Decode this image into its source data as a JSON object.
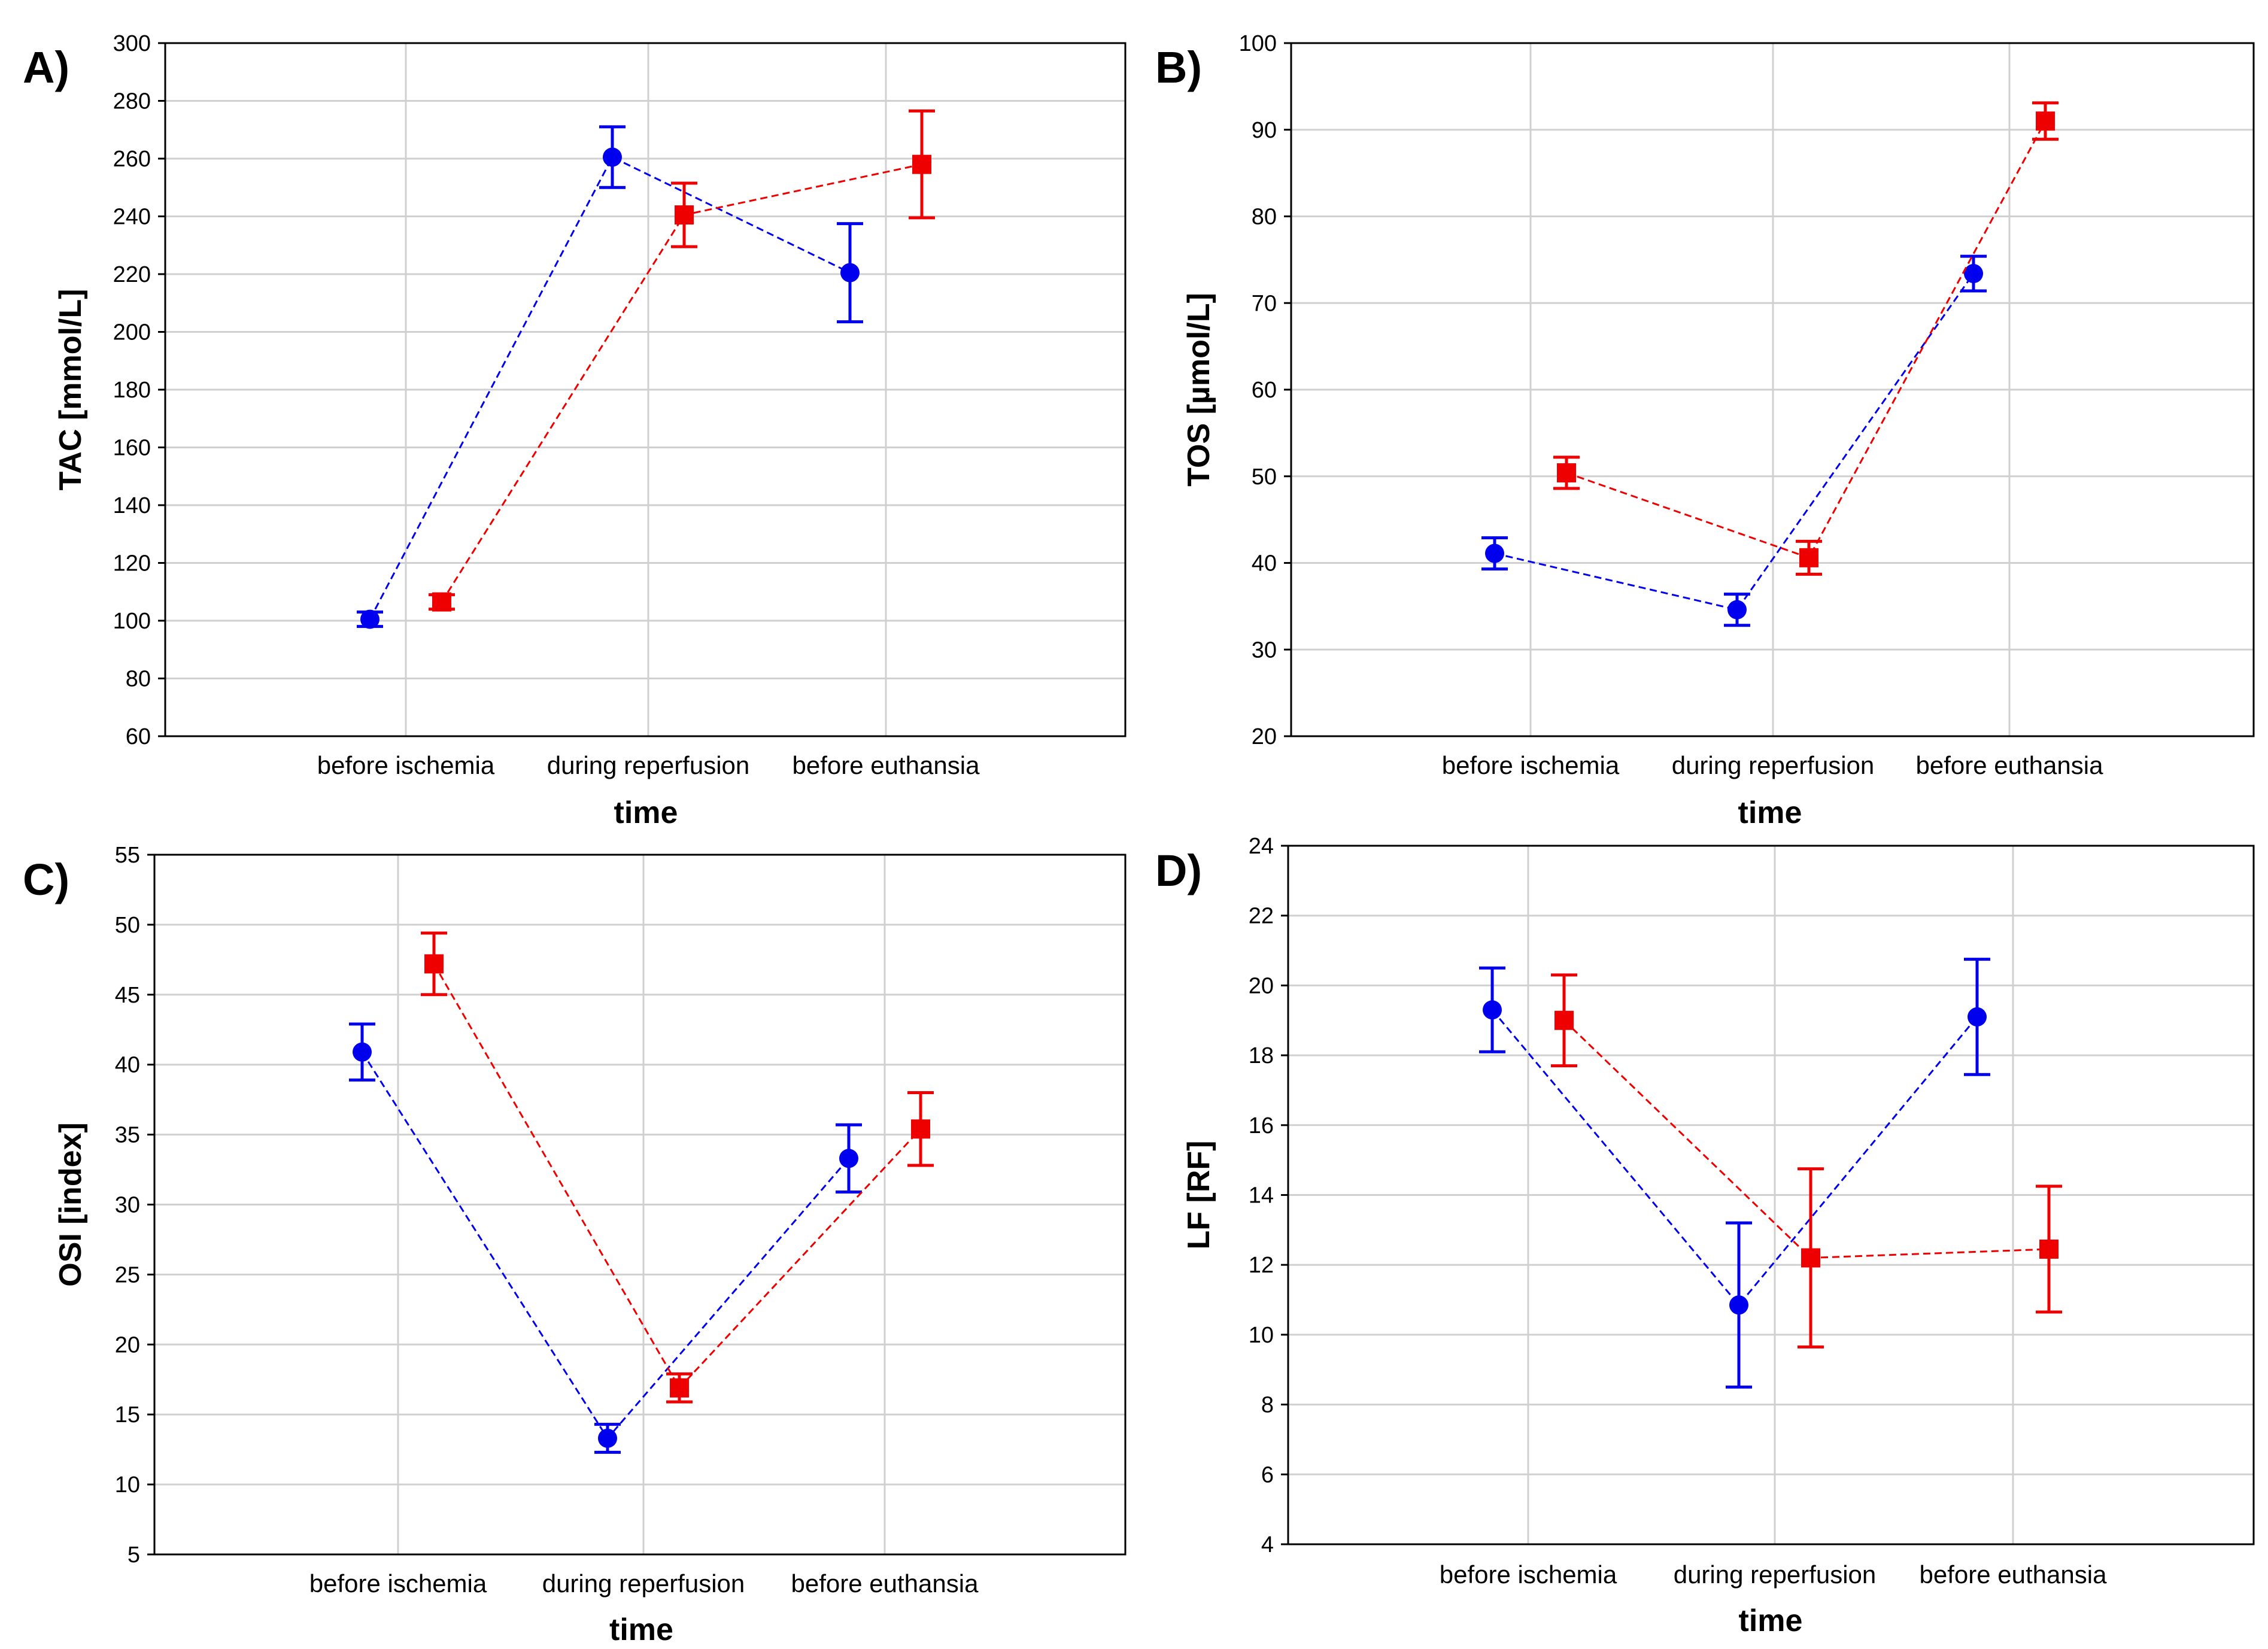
{
  "colors": {
    "blue": "#0000ee",
    "red": "#ee0000"
  },
  "chart_data": [
    {
      "type": "line",
      "panel_label": "A)",
      "categories": [
        "before ischemia",
        "during reperfusion",
        "before euthansia"
      ],
      "xlabel": "time",
      "ylabel": "TAC [mmol/L]",
      "ylim": [
        60,
        300
      ],
      "yticks": [
        "60",
        "80",
        "100",
        "120",
        "140",
        "160",
        "180",
        "200",
        "220",
        "240",
        "260",
        "280",
        "300"
      ],
      "grid": true,
      "series": [
        {
          "name": "blue",
          "marker": "circle",
          "values": [
            100.5,
            260.5,
            220.5
          ],
          "errors": [
            2.5,
            10.5,
            17
          ]
        },
        {
          "name": "red",
          "marker": "square",
          "values": [
            106.5,
            240.5,
            258
          ],
          "errors": [
            2.5,
            11,
            18.5
          ]
        }
      ]
    },
    {
      "type": "line",
      "panel_label": "B)",
      "categories": [
        "before ischemia",
        "during reperfusion",
        "before euthansia"
      ],
      "xlabel": "time",
      "ylabel": "TOS [µmol/L]",
      "ylim": [
        20,
        100
      ],
      "yticks": [
        "20",
        "30",
        "40",
        "50",
        "60",
        "70",
        "80",
        "90",
        "100"
      ],
      "grid": true,
      "series": [
        {
          "name": "blue",
          "marker": "circle",
          "values": [
            41.1,
            34.6,
            73.4
          ],
          "errors": [
            1.8,
            1.8,
            2.0
          ]
        },
        {
          "name": "red",
          "marker": "square",
          "values": [
            50.4,
            40.6,
            91.0
          ],
          "errors": [
            1.8,
            1.9,
            2.1
          ]
        }
      ]
    },
    {
      "type": "line",
      "panel_label": "C)",
      "categories": [
        "before ischemia",
        "during reperfusion",
        "before euthansia"
      ],
      "xlabel": "time",
      "ylabel": "OSI [index]",
      "ylim": [
        5,
        55
      ],
      "yticks": [
        "5",
        "10",
        "15",
        "20",
        "25",
        "30",
        "35",
        "40",
        "45",
        "50",
        "55"
      ],
      "grid": true,
      "series": [
        {
          "name": "blue",
          "marker": "circle",
          "values": [
            40.9,
            13.3,
            33.3
          ],
          "errors": [
            2.0,
            1.0,
            2.4
          ]
        },
        {
          "name": "red",
          "marker": "square",
          "values": [
            47.2,
            16.9,
            35.4
          ],
          "errors": [
            2.2,
            1.0,
            2.6
          ]
        }
      ]
    },
    {
      "type": "line",
      "panel_label": "D)",
      "categories": [
        "before ischemia",
        "during reperfusion",
        "before euthansia"
      ],
      "xlabel": "time",
      "ylabel": "LF [RF]",
      "ylim": [
        4,
        24
      ],
      "yticks": [
        "4",
        "6",
        "8",
        "10",
        "12",
        "14",
        "16",
        "18",
        "20",
        "22",
        "24"
      ],
      "grid": true,
      "series": [
        {
          "name": "blue",
          "marker": "circle",
          "values": [
            19.3,
            10.85,
            19.1
          ],
          "errors": [
            1.2,
            2.35,
            1.65
          ]
        },
        {
          "name": "red",
          "marker": "square",
          "values": [
            19.0,
            12.2,
            12.45
          ],
          "errors": [
            1.3,
            2.55,
            1.8
          ]
        }
      ]
    }
  ]
}
